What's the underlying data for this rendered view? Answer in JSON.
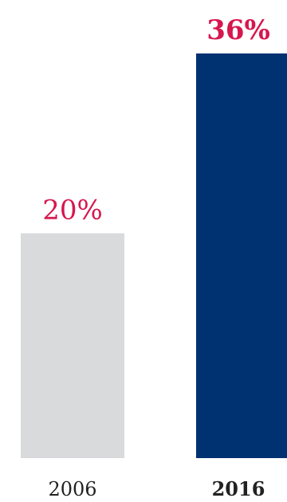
{
  "chart_data": {
    "type": "bar",
    "categories": [
      "2006",
      "2016"
    ],
    "values": [
      20,
      36
    ],
    "value_labels": [
      "20%",
      "36%"
    ],
    "ylim": [
      0,
      36
    ],
    "grid": false,
    "legend": "none",
    "highlight_index": 1
  },
  "colors": {
    "bars": [
      "#d9dadc",
      "#003271"
    ],
    "value_label": "#d6174e",
    "category_label": "#222222",
    "background": "#ffffff"
  }
}
